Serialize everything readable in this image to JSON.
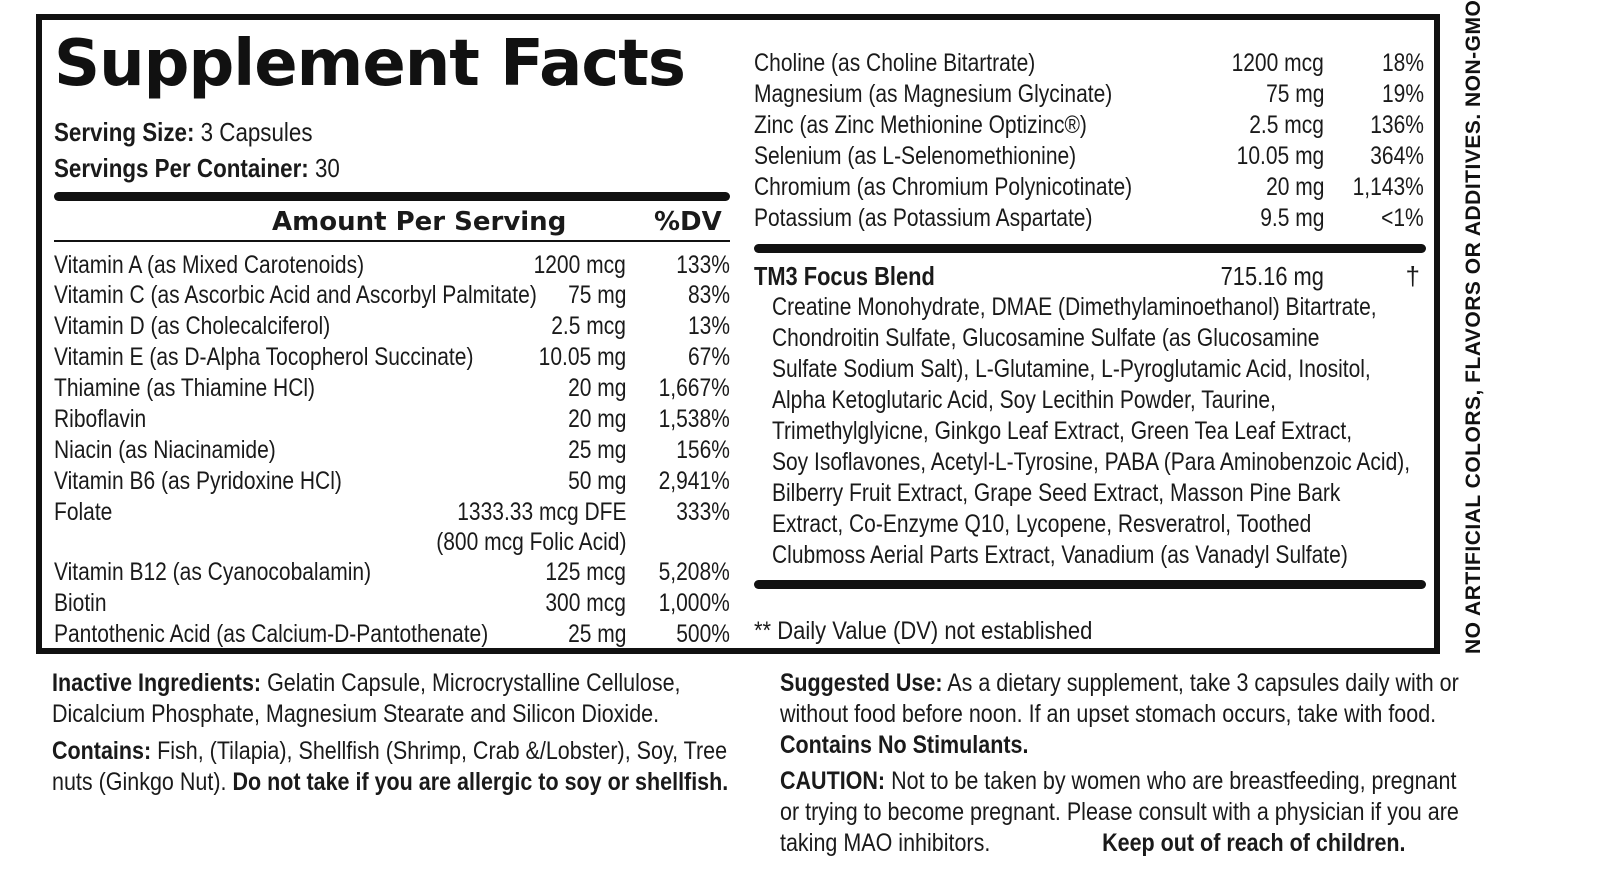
{
  "label": {
    "title": "Supplement Facts",
    "serving_size_label": "Serving Size:",
    "serving_size_value": "3 Capsules",
    "servings_per_container_label": "Servings Per Container:",
    "servings_per_container_value": "30",
    "amount_per_serving_header": "Amount Per Serving",
    "dv_header": "%DV"
  },
  "left_nutrients": [
    {
      "name": "Vitamin A (as Mixed Carotenoids)",
      "amount": "1200 mcg",
      "dv": "133%"
    },
    {
      "name": "Vitamin C (as Ascorbic Acid and Ascorbyl Palmitate)",
      "amount": "75 mg",
      "dv": "83%"
    },
    {
      "name": "Vitamin D (as Cholecalciferol)",
      "amount": "2.5 mcg",
      "dv": "13%"
    },
    {
      "name": "Vitamin E (as D-Alpha Tocopherol Succinate)",
      "amount": "10.05 mg",
      "dv": "67%"
    },
    {
      "name": "Thiamine (as Thiamine HCl)",
      "amount": "20 mg",
      "dv": "1,667%"
    },
    {
      "name": "Riboflavin",
      "amount": "20 mg",
      "dv": "1,538%"
    },
    {
      "name": "Niacin (as Niacinamide)",
      "amount": "25 mg",
      "dv": "156%"
    },
    {
      "name": "Vitamin B6 (as Pyridoxine HCl)",
      "amount": "50 mg",
      "dv": "2,941%"
    },
    {
      "name": "Folate",
      "amount": "1333.33 mcg DFE",
      "sub_amount": "(800 mcg Folic Acid)",
      "dv": "333%"
    },
    {
      "name": "Vitamin B12 (as Cyanocobalamin)",
      "amount": "125 mcg",
      "dv": "5,208%"
    },
    {
      "name": "Biotin",
      "amount": "300 mcg",
      "dv": "1,000%"
    },
    {
      "name": "Pantothenic Acid (as Calcium-D-Pantothenate)",
      "amount": "25 mg",
      "dv": "500%"
    }
  ],
  "right_nutrients": [
    {
      "name": "Choline (as Choline Bitartrate)",
      "amount": "1200 mcg",
      "dv": "18%"
    },
    {
      "name": "Magnesium (as Magnesium Glycinate)",
      "amount": "75 mg",
      "dv": "19%"
    },
    {
      "name": "Zinc (as Zinc Methionine Optizinc®)",
      "amount": "2.5 mcg",
      "dv": "136%"
    },
    {
      "name": "Selenium (as L-Selenomethionine)",
      "amount": "10.05 mg",
      "dv": "364%"
    },
    {
      "name": "Chromium (as Chromium Polynicotinate)",
      "amount": "20 mg",
      "dv": "1,143%"
    },
    {
      "name": "Potassium (as Potassium Aspartate)",
      "amount": "9.5 mg",
      "dv": "<1%"
    }
  ],
  "blend": {
    "name": "TM3 Focus Blend",
    "amount": "715.16 mg",
    "dv": "†",
    "lines": [
      "Creatine Monohydrate, DMAE (Dimethylaminoethanol) Bitartrate,",
      "Chondroitin Sulfate, Glucosamine Sulfate (as Glucosamine",
      "Sulfate Sodium Salt), L-Glutamine, L-Pyroglutamic Acid, Inositol,",
      "Alpha Ketoglutaric Acid, Soy Lecithin Powder, Taurine,",
      "Trimethylglyicne, Ginkgo Leaf Extract, Green Tea Leaf Extract,",
      "Soy Isoflavones, Acetyl-L-Tyrosine, PABA (Para Aminobenzoic Acid),",
      "Bilberry Fruit Extract, Grape Seed Extract, Masson Pine Bark",
      "Extract, Co-Enzyme Q10, Lycopene, Resveratrol, Toothed",
      "Clubmoss Aerial Parts Extract, Vanadium (as Vanadyl Sulfate)"
    ]
  },
  "dv_footnote": "** Daily Value (DV) not established",
  "side_note": "NO ARTIFICIAL COLORS, FLAVORS OR ADDITIVES. NON-GMO.",
  "inactive": {
    "label": "Inactive Ingredients:",
    "line1": "Gelatin Capsule, Microcrystalline Cellulose,",
    "line2": "Dicalcium Phosphate, Magnesium Stearate and Silicon Dioxide."
  },
  "contains": {
    "label": "Contains:",
    "line1": "Fish, (Tilapia), Shellfish (Shrimp, Crab &/Lobster), Soy, Tree",
    "line2_plain": "nuts (Ginkgo Nut).",
    "line2_bold": "Do not take if you are allergic to soy or shellfish."
  },
  "suggested_use": {
    "label": "Suggested Use:",
    "line1": "As a dietary supplement, take 3 capsules daily with or",
    "line2": "without food before noon. If an upset stomach occurs, take with food.",
    "no_stimulants": "Contains No Stimulants."
  },
  "caution": {
    "label": "CAUTION:",
    "line1": "Not to be taken by women who are breastfeeding, pregnant",
    "line2": "or trying to become pregnant. Please consult with a physician if you are",
    "line3": "taking MAO inhibitors.",
    "keep_out": "Keep out of reach of children."
  }
}
